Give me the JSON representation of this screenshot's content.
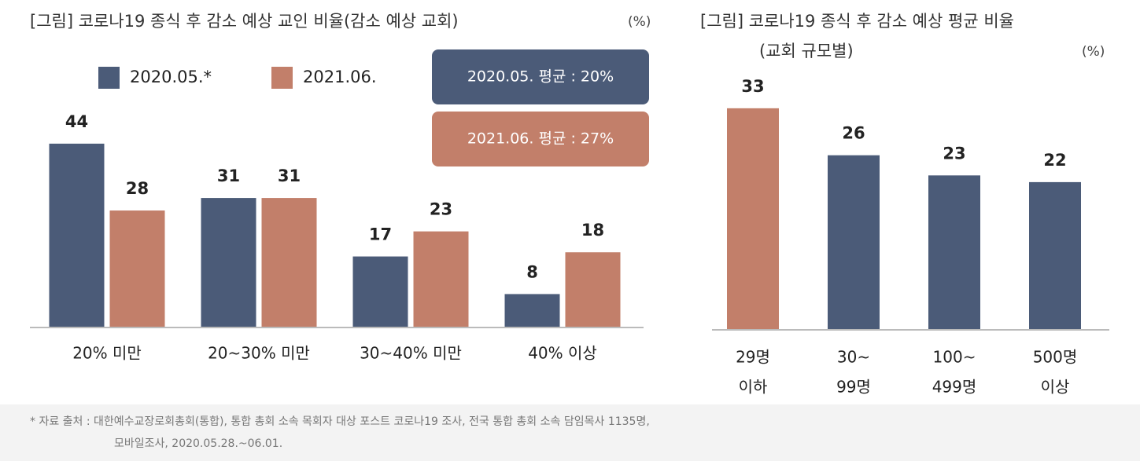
{
  "chart_data": [
    {
      "type": "bar",
      "title": "[그림] 코로나19 종식 후 감소 예상 교인 비율(감소 예상 교회)",
      "unit": "(%)",
      "categories": [
        "20% 미만",
        "20~30% 미만",
        "30~40% 미만",
        "40% 이상"
      ],
      "series": [
        {
          "name": "2020.05.*",
          "color": "#4b5b78",
          "values": [
            44,
            31,
            17,
            8
          ]
        },
        {
          "name": "2021.06.",
          "color": "#c27f6a",
          "values": [
            28,
            31,
            23,
            18
          ]
        }
      ],
      "annotations": [
        {
          "text": "2020.05. 평균 : 20%",
          "color": "#4b5b78"
        },
        {
          "text": "2021.06. 평균 : 27%",
          "color": "#c27f6a"
        }
      ],
      "ylim": [
        0,
        50
      ]
    },
    {
      "type": "bar",
      "title": "[그림] 코로나19 종식 후 감소 예상 평균 비율",
      "subtitle": "(교회 규모별)",
      "unit": "(%)",
      "categories": [
        [
          "29명",
          "이하"
        ],
        [
          "30~",
          "99명"
        ],
        [
          "100~",
          "499명"
        ],
        [
          "500명",
          "이상"
        ]
      ],
      "values": [
        33,
        26,
        23,
        22
      ],
      "colors": [
        "#c27f6a",
        "#4b5b78",
        "#4b5b78",
        "#4b5b78"
      ],
      "ylim": [
        0,
        40
      ]
    }
  ],
  "footnote": [
    "* 자료 출처 : 대한예수교장로회총회(통합), 통합 총회 소속 목회자 대상 포스트 코로나19 조사, 전국 통합 총회 소속 담임목사 1135명,",
    "모바일조사, 2020.05.28.~06.01."
  ]
}
